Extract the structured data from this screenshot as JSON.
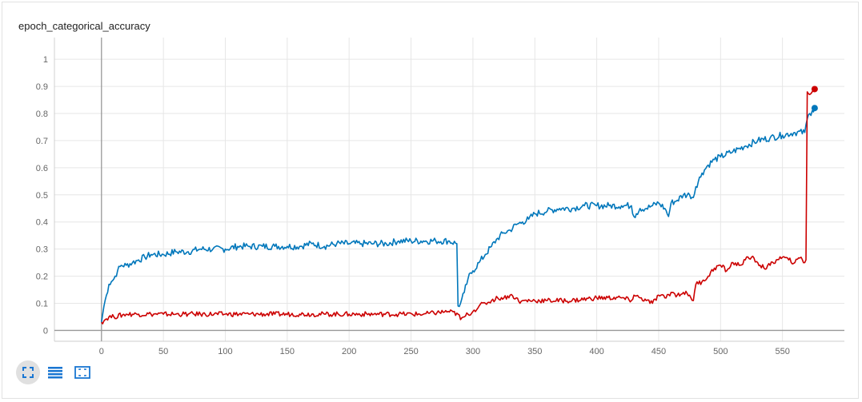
{
  "card": {
    "title": "epoch_categorical_accuracy"
  },
  "colors": {
    "blue": "#0077bb",
    "red": "#cc0000",
    "grid": "#e6e6e6",
    "axis": "#999999"
  },
  "toolbar": {
    "buttons": [
      {
        "name": "expand-chart-button",
        "icon": "fullscreen-icon"
      },
      {
        "name": "toggle-log-scale-button",
        "icon": "list-lines-icon"
      },
      {
        "name": "fit-domain-button",
        "icon": "fit-to-data-icon"
      }
    ]
  },
  "chart_data": {
    "type": "line",
    "title": "epoch_categorical_accuracy",
    "xlabel": "",
    "ylabel": "",
    "xlim": [
      -38,
      600
    ],
    "ylim": [
      -0.04,
      1.08
    ],
    "xticks": [
      0,
      50,
      100,
      150,
      200,
      250,
      300,
      350,
      400,
      450,
      500,
      550
    ],
    "yticks": [
      0,
      0.1,
      0.2,
      0.3,
      0.4,
      0.5,
      0.6,
      0.7,
      0.8,
      0.9,
      1
    ],
    "grid": true,
    "series": [
      {
        "name": "",
        "color": "#0077bb",
        "x": [
          0,
          2,
          4,
          6,
          8,
          10,
          13,
          16,
          20,
          25,
          30,
          35,
          40,
          50,
          60,
          70,
          80,
          90,
          100,
          110,
          120,
          130,
          140,
          150,
          160,
          170,
          180,
          190,
          200,
          210,
          220,
          230,
          240,
          250,
          260,
          270,
          280,
          287,
          288,
          290,
          293,
          296,
          300,
          305,
          310,
          315,
          320,
          325,
          330,
          335,
          340,
          345,
          350,
          360,
          370,
          380,
          390,
          400,
          410,
          420,
          428,
          430,
          432,
          435,
          440,
          445,
          450,
          455,
          458,
          460,
          465,
          470,
          475,
          478,
          480,
          485,
          490,
          495,
          500,
          510,
          520,
          530,
          540,
          550,
          560,
          568,
          570,
          572,
          574,
          576
        ],
        "y": [
          0.03,
          0.09,
          0.13,
          0.17,
          0.18,
          0.19,
          0.22,
          0.24,
          0.24,
          0.25,
          0.26,
          0.27,
          0.28,
          0.28,
          0.29,
          0.29,
          0.3,
          0.3,
          0.3,
          0.31,
          0.31,
          0.31,
          0.31,
          0.31,
          0.31,
          0.32,
          0.31,
          0.32,
          0.32,
          0.32,
          0.32,
          0.32,
          0.33,
          0.33,
          0.33,
          0.33,
          0.33,
          0.32,
          0.09,
          0.1,
          0.14,
          0.19,
          0.22,
          0.25,
          0.28,
          0.31,
          0.34,
          0.36,
          0.37,
          0.39,
          0.4,
          0.41,
          0.43,
          0.44,
          0.45,
          0.45,
          0.46,
          0.46,
          0.46,
          0.46,
          0.46,
          0.42,
          0.43,
          0.45,
          0.45,
          0.46,
          0.47,
          0.45,
          0.42,
          0.47,
          0.48,
          0.5,
          0.5,
          0.49,
          0.53,
          0.58,
          0.61,
          0.63,
          0.64,
          0.66,
          0.68,
          0.7,
          0.71,
          0.72,
          0.73,
          0.73,
          0.78,
          0.8,
          0.81,
          0.82
        ]
      },
      {
        "name": "",
        "color": "#cc0000",
        "x": [
          0,
          3,
          6,
          10,
          20,
          30,
          40,
          50,
          60,
          70,
          80,
          100,
          120,
          140,
          160,
          180,
          200,
          220,
          240,
          260,
          280,
          288,
          290,
          293,
          296,
          300,
          305,
          310,
          315,
          320,
          325,
          330,
          335,
          338,
          340,
          350,
          360,
          380,
          400,
          420,
          428,
          430,
          435,
          440,
          445,
          450,
          455,
          460,
          465,
          470,
          475,
          478,
          480,
          485,
          490,
          495,
          500,
          505,
          510,
          515,
          520,
          525,
          530,
          535,
          540,
          545,
          550,
          555,
          560,
          565,
          568,
          569,
          570,
          572,
          574,
          576
        ],
        "y": [
          0.03,
          0.04,
          0.05,
          0.05,
          0.06,
          0.06,
          0.06,
          0.06,
          0.06,
          0.06,
          0.06,
          0.06,
          0.06,
          0.06,
          0.06,
          0.06,
          0.06,
          0.06,
          0.06,
          0.06,
          0.07,
          0.06,
          0.04,
          0.05,
          0.06,
          0.07,
          0.09,
          0.1,
          0.11,
          0.12,
          0.12,
          0.13,
          0.12,
          0.1,
          0.11,
          0.11,
          0.11,
          0.11,
          0.12,
          0.12,
          0.11,
          0.13,
          0.12,
          0.11,
          0.1,
          0.13,
          0.12,
          0.14,
          0.13,
          0.14,
          0.13,
          0.11,
          0.17,
          0.18,
          0.2,
          0.23,
          0.24,
          0.22,
          0.25,
          0.24,
          0.26,
          0.27,
          0.25,
          0.23,
          0.24,
          0.26,
          0.27,
          0.26,
          0.25,
          0.27,
          0.25,
          0.26,
          0.88,
          0.87,
          0.88,
          0.89
        ]
      }
    ]
  }
}
